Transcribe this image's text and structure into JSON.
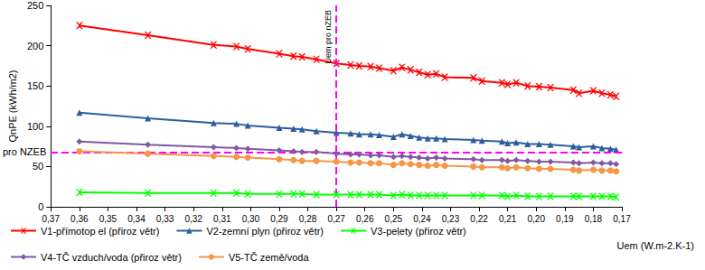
{
  "chart_data": {
    "type": "line",
    "y_label": "QnPE (kWh/m2)",
    "x_label": "Uem (W.m-2.K-1)",
    "xlim": [
      0.37,
      0.17
    ],
    "xticks": [
      {
        "value": 0.37,
        "label": "0,37"
      },
      {
        "value": 0.36,
        "label": "0,36"
      },
      {
        "value": 0.35,
        "label": "0,35"
      },
      {
        "value": 0.34,
        "label": "0,34"
      },
      {
        "value": 0.33,
        "label": "0,33"
      },
      {
        "value": 0.32,
        "label": "0,32"
      },
      {
        "value": 0.31,
        "label": "0,31"
      },
      {
        "value": 0.3,
        "label": "0,30"
      },
      {
        "value": 0.29,
        "label": "0,29"
      },
      {
        "value": 0.28,
        "label": "0,28"
      },
      {
        "value": 0.27,
        "label": "0,27"
      },
      {
        "value": 0.26,
        "label": "0,26"
      },
      {
        "value": 0.25,
        "label": "0,25"
      },
      {
        "value": 0.24,
        "label": "0,24"
      },
      {
        "value": 0.23,
        "label": "0,23"
      },
      {
        "value": 0.22,
        "label": "0,22"
      },
      {
        "value": 0.21,
        "label": "0,21"
      },
      {
        "value": 0.2,
        "label": "0,20"
      },
      {
        "value": 0.19,
        "label": "0,19"
      },
      {
        "value": 0.18,
        "label": "0,18"
      },
      {
        "value": 0.17,
        "label": "0,17"
      }
    ],
    "ylim": [
      0,
      250
    ],
    "yticks": [
      0,
      50,
      100,
      150,
      200,
      250
    ],
    "grid": false,
    "legend": "bottom",
    "x": [
      0.36,
      0.336,
      0.313,
      0.305,
      0.301,
      0.29,
      0.285,
      0.282,
      0.277,
      0.27,
      0.265,
      0.262,
      0.258,
      0.255,
      0.25,
      0.247,
      0.244,
      0.241,
      0.238,
      0.235,
      0.232,
      0.222,
      0.219,
      0.212,
      0.21,
      0.207,
      0.203,
      0.199,
      0.195,
      0.187,
      0.185,
      0.18,
      0.177,
      0.174,
      0.172
    ],
    "series": [
      {
        "name": "V1-přímotop el (přiroz větr)",
        "color": "#ff0000",
        "marker": "x",
        "values": [
          225,
          213,
          201,
          199,
          196,
          190,
          187,
          186,
          183,
          178,
          176,
          175,
          174,
          172,
          169,
          173,
          170,
          167,
          164,
          165,
          161,
          160,
          156,
          154,
          152,
          154,
          150,
          149,
          148,
          145,
          141,
          144,
          141,
          139,
          137
        ]
      },
      {
        "name": "V2-zemní plyn (přiroz větr)",
        "color": "#2f5d9c",
        "marker": "triangle",
        "values": [
          117,
          110,
          104,
          103,
          101,
          98,
          97,
          96,
          94,
          92,
          91,
          90,
          90,
          89,
          87,
          90,
          88,
          86,
          85,
          85,
          84,
          83,
          82,
          81,
          79,
          80,
          78,
          78,
          77,
          75,
          74,
          75,
          73,
          72,
          71
        ]
      },
      {
        "name": "V3-pelety (přiroz větr)",
        "color": "#00ff00",
        "marker": "x",
        "values": [
          18,
          17,
          17,
          17,
          16,
          16,
          16,
          16,
          15,
          15,
          15,
          15,
          15,
          15,
          14,
          15,
          14,
          14,
          14,
          14,
          14,
          14,
          14,
          14,
          13,
          14,
          13,
          13,
          13,
          13,
          13,
          13,
          13,
          13,
          12
        ]
      },
      {
        "name": "V4-TČ vzduch/voda (přiroz větr)",
        "color": "#7f5aa2",
        "marker": "diamond",
        "values": [
          81,
          77,
          74,
          73,
          72,
          70,
          69,
          68,
          68,
          66,
          65,
          65,
          64,
          64,
          62,
          63,
          62,
          61,
          60,
          61,
          60,
          59,
          58,
          58,
          57,
          58,
          57,
          56,
          56,
          55,
          54,
          55,
          54,
          54,
          53
        ]
      },
      {
        "name": "V5-TČ země/voda",
        "color": "#f79646",
        "marker": "circle",
        "values": [
          69,
          66,
          63,
          62,
          61,
          59,
          58,
          57,
          57,
          56,
          55,
          55,
          54,
          54,
          52,
          54,
          53,
          52,
          51,
          52,
          51,
          50,
          49,
          49,
          48,
          49,
          48,
          47,
          47,
          46,
          45,
          46,
          45,
          45,
          44
        ]
      }
    ],
    "annotations": [
      {
        "text": "Uem pro nZEB",
        "x": 0.271,
        "color": "#ff00ff",
        "line_style": "dashed"
      },
      {
        "text": "QnPE pro NZEB",
        "y": 68,
        "color": "#ff00ff",
        "line_style": "dashed"
      }
    ]
  }
}
